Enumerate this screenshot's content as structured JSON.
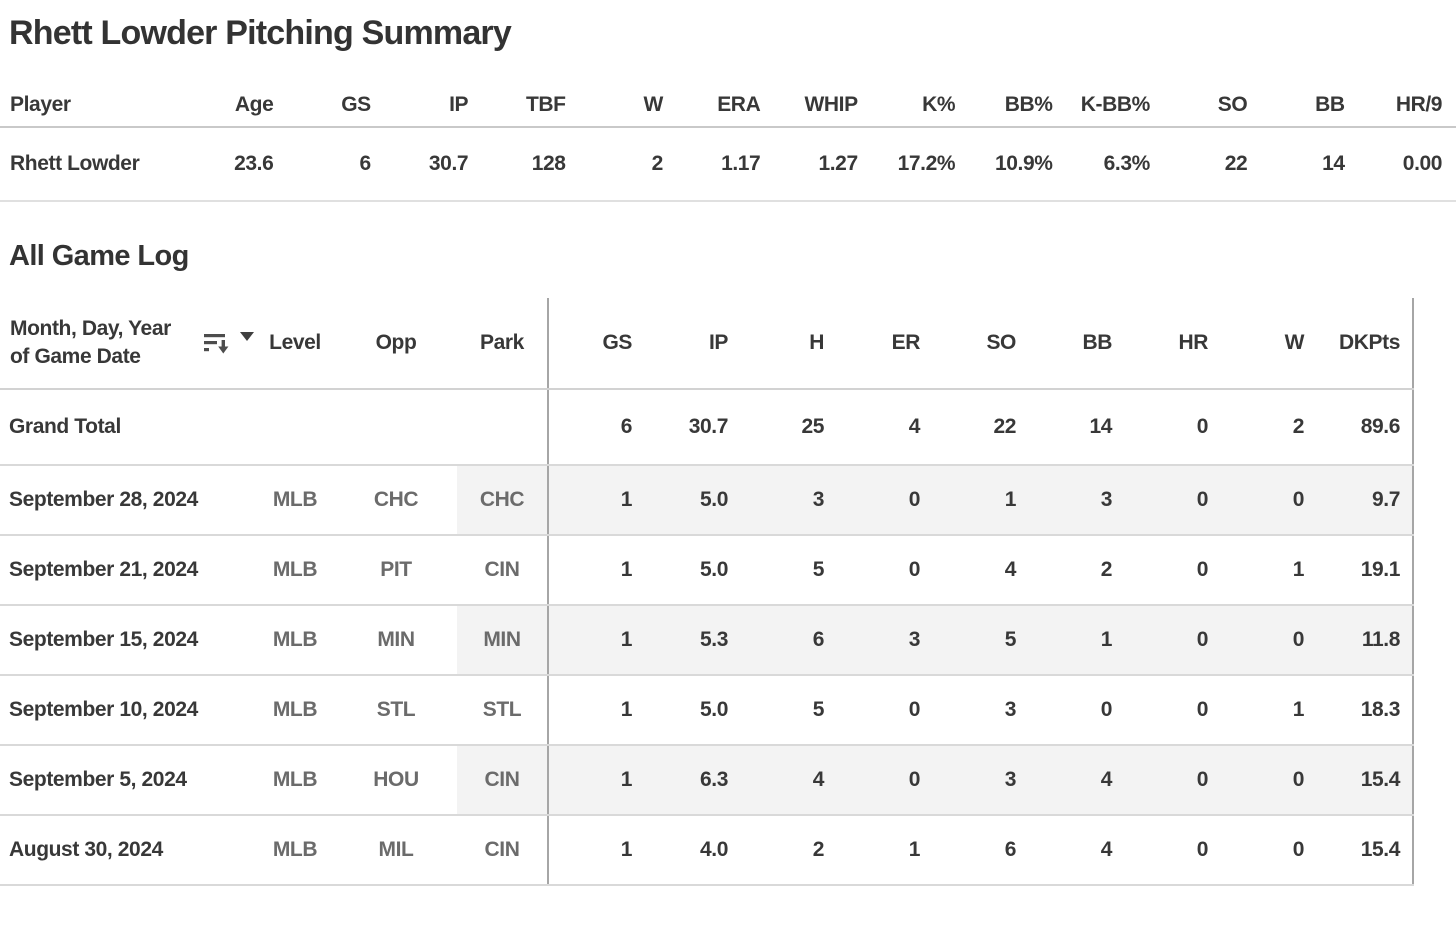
{
  "title": "Rhett Lowder Pitching Summary",
  "summary": {
    "headers": [
      "Player",
      "Age",
      "GS",
      "IP",
      "TBF",
      "W",
      "ERA",
      "WHIP",
      "K%",
      "BB%",
      "K-BB%",
      "SO",
      "BB",
      "HR/9"
    ],
    "row": {
      "player": "Rhett Lowder",
      "values": [
        "23.6",
        "6",
        "30.7",
        "128",
        "2",
        "1.17",
        "1.27",
        "17.2%",
        "10.9%",
        "6.3%",
        "22",
        "14",
        "0.00"
      ]
    }
  },
  "game_log": {
    "heading": "All Game Log",
    "date_column_header": "Month, Day, Year of Game Date",
    "dim_headers": [
      "Level",
      "Opp",
      "Park"
    ],
    "metric_headers": [
      "GS",
      "IP",
      "H",
      "ER",
      "SO",
      "BB",
      "HR",
      "W",
      "DKPts"
    ],
    "icons": {
      "sort": "sort-descending-icon",
      "dropdown": "dropdown-arrow-icon"
    },
    "rows": [
      {
        "date": "Grand Total",
        "level": "",
        "opp": "",
        "park": "",
        "vals": [
          "6",
          "30.7",
          "25",
          "4",
          "22",
          "14",
          "0",
          "2",
          "89.6"
        ]
      },
      {
        "date": "September 28, 2024",
        "level": "MLB",
        "opp": "CHC",
        "park": "CHC",
        "vals": [
          "1",
          "5.0",
          "3",
          "0",
          "1",
          "3",
          "0",
          "0",
          "9.7"
        ]
      },
      {
        "date": "September 21, 2024",
        "level": "MLB",
        "opp": "PIT",
        "park": "CIN",
        "vals": [
          "1",
          "5.0",
          "5",
          "0",
          "4",
          "2",
          "0",
          "1",
          "19.1"
        ]
      },
      {
        "date": "September 15, 2024",
        "level": "MLB",
        "opp": "MIN",
        "park": "MIN",
        "vals": [
          "1",
          "5.3",
          "6",
          "3",
          "5",
          "1",
          "0",
          "0",
          "11.8"
        ]
      },
      {
        "date": "September 10, 2024",
        "level": "MLB",
        "opp": "STL",
        "park": "STL",
        "vals": [
          "1",
          "5.0",
          "5",
          "0",
          "3",
          "0",
          "0",
          "1",
          "18.3"
        ]
      },
      {
        "date": "September 5, 2024",
        "level": "MLB",
        "opp": "HOU",
        "park": "CIN",
        "vals": [
          "1",
          "6.3",
          "4",
          "0",
          "3",
          "4",
          "0",
          "0",
          "15.4"
        ]
      },
      {
        "date": "August 30, 2024",
        "level": "MLB",
        "opp": "MIL",
        "park": "CIN",
        "vals": [
          "1",
          "4.0",
          "2",
          "1",
          "6",
          "4",
          "0",
          "0",
          "15.4"
        ]
      }
    ]
  },
  "colors": {
    "text_dark": "#383838",
    "text_gray": "#6b6b6b",
    "row_band": "#f3f3f3",
    "border_light": "#d9d9d9",
    "border_divider": "#a6a6a6"
  }
}
